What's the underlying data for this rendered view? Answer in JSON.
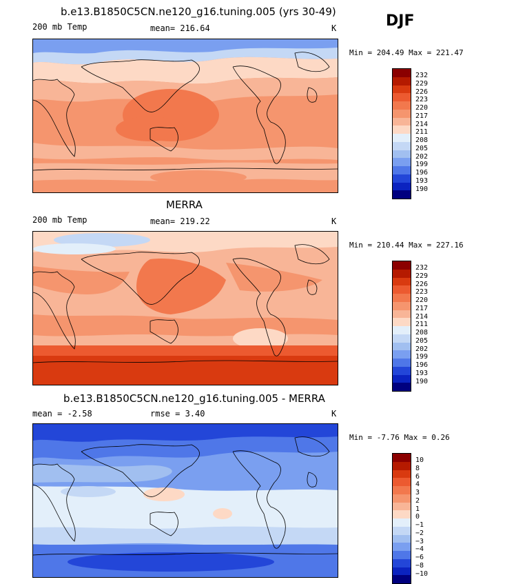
{
  "season": "DJF",
  "panels": [
    {
      "title": "b.e13.B1850C5CN.ne120_g16.tuning.005 (yrs 30-49)",
      "left_label": "200 mb Temp",
      "center_label": "mean= 216.64",
      "unit": "K",
      "minmax": "Min = 204.49 Max = 221.47"
    },
    {
      "title": "MERRA",
      "left_label": "200 mb Temp",
      "center_label": "mean= 219.22",
      "unit": "K",
      "minmax": "Min = 210.44 Max = 227.16"
    },
    {
      "title": "b.e13.B1850C5CN.ne120_g16.tuning.005 - MERRA",
      "left_label": "mean =   -2.58",
      "center_label": "rmse =    3.40",
      "unit": "K",
      "minmax": "Min =  -7.76 Max =    0.26"
    }
  ],
  "colorbar_abs": {
    "labels": [
      "232",
      "229",
      "226",
      "223",
      "220",
      "217",
      "214",
      "211",
      "208",
      "205",
      "202",
      "199",
      "196",
      "193",
      "190"
    ],
    "colors": [
      "#8b0000",
      "#b51a00",
      "#d93a10",
      "#ec5a30",
      "#f2784d",
      "#f5956e",
      "#f8b597",
      "#fdd9c5",
      "#e3effa",
      "#c4d8f5",
      "#a1bff0",
      "#7a9ff0",
      "#4f77e8",
      "#2346d8",
      "#0b23c0",
      "#00007f"
    ]
  },
  "colorbar_diff": {
    "labels": [
      "10",
      "8",
      "6",
      "4",
      "3",
      "2",
      "1",
      "0",
      "−1",
      "−2",
      "−3",
      "−4",
      "−6",
      "−8",
      "−10"
    ],
    "colors": [
      "#8b0000",
      "#b51a00",
      "#d93a10",
      "#ec5a30",
      "#f2784d",
      "#f5956e",
      "#f8b597",
      "#fdd9c5",
      "#e3effa",
      "#c4d8f5",
      "#a1bff0",
      "#7a9ff0",
      "#4f77e8",
      "#2346d8",
      "#0b23c0",
      "#00007f"
    ]
  }
}
